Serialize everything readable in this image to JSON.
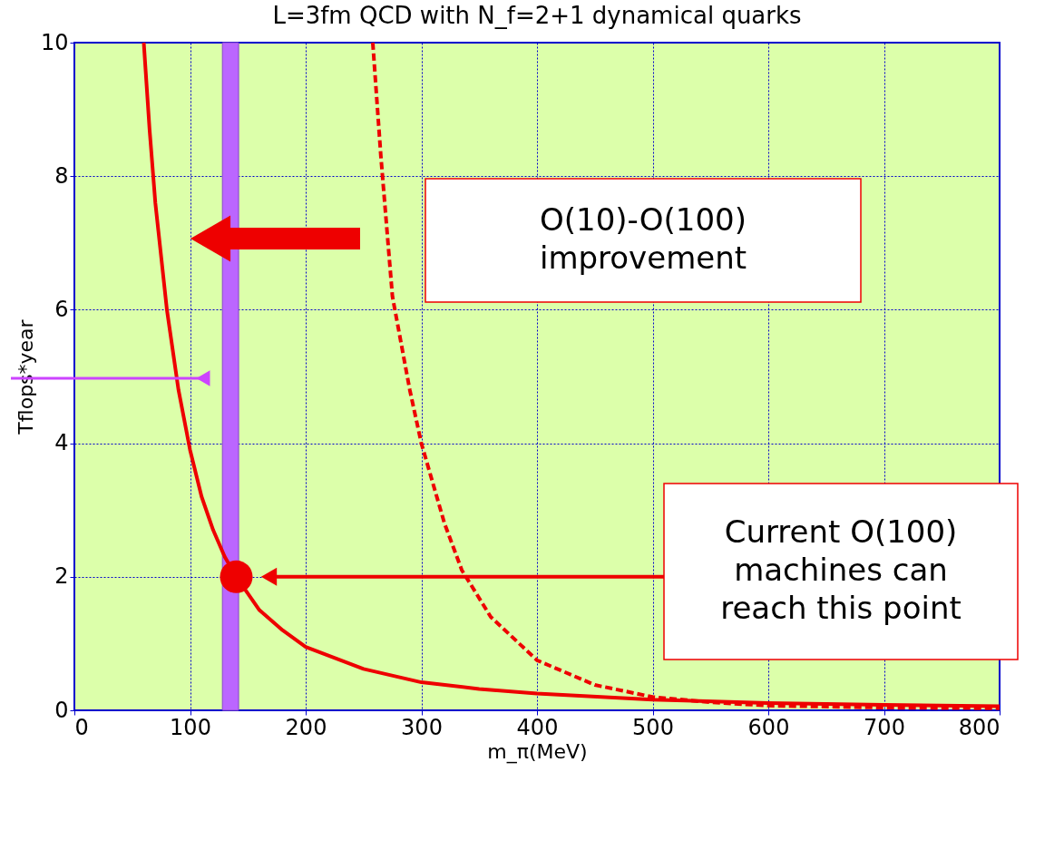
{
  "chart_data": {
    "type": "line",
    "title": "L=3fm QCD with N_f=2+1 dynamical quarks",
    "xlabel": "m_π(MeV)",
    "ylabel": "Tflops*year",
    "xlim": [
      0,
      800
    ],
    "ylim": [
      0,
      10
    ],
    "xticks": [
      0,
      100,
      200,
      300,
      400,
      500,
      600,
      700,
      800
    ],
    "yticks": [
      0,
      2,
      4,
      6,
      8,
      10
    ],
    "grid": true,
    "series": [
      {
        "color": "#ee0000",
        "line_style": "solid",
        "x": [
          60,
          65,
          70,
          80,
          90,
          100,
          110,
          120,
          130,
          140,
          160,
          180,
          200,
          250,
          300,
          350,
          400,
          500,
          600,
          700,
          800
        ],
        "values": [
          10,
          8.7,
          7.6,
          6.0,
          4.8,
          3.9,
          3.2,
          2.7,
          2.3,
          2.0,
          1.5,
          1.2,
          0.95,
          0.62,
          0.42,
          0.32,
          0.25,
          0.16,
          0.11,
          0.08,
          0.06
        ]
      },
      {
        "color": "#ee0000",
        "line_style": "dashed",
        "x": [
          258,
          265,
          275,
          290,
          300,
          320,
          335,
          360,
          400,
          450,
          500,
          550,
          600,
          700,
          800
        ],
        "values": [
          10,
          8.3,
          6.2,
          4.8,
          4.0,
          2.8,
          2.1,
          1.4,
          0.75,
          0.38,
          0.2,
          0.12,
          0.07,
          0.04,
          0.03
        ]
      },
      {
        "type": "scatter",
        "color": "#ee0000",
        "marker": "circle",
        "x": [
          140
        ],
        "values": [
          2
        ]
      }
    ],
    "bands": [
      {
        "axis": "x",
        "from": 128,
        "to": 142,
        "color": "#bb66ff"
      }
    ],
    "annotations": [
      "O(10)-O(100)\nimprovement",
      "Current O(100)\nmachines can\nreach this point"
    ]
  }
}
